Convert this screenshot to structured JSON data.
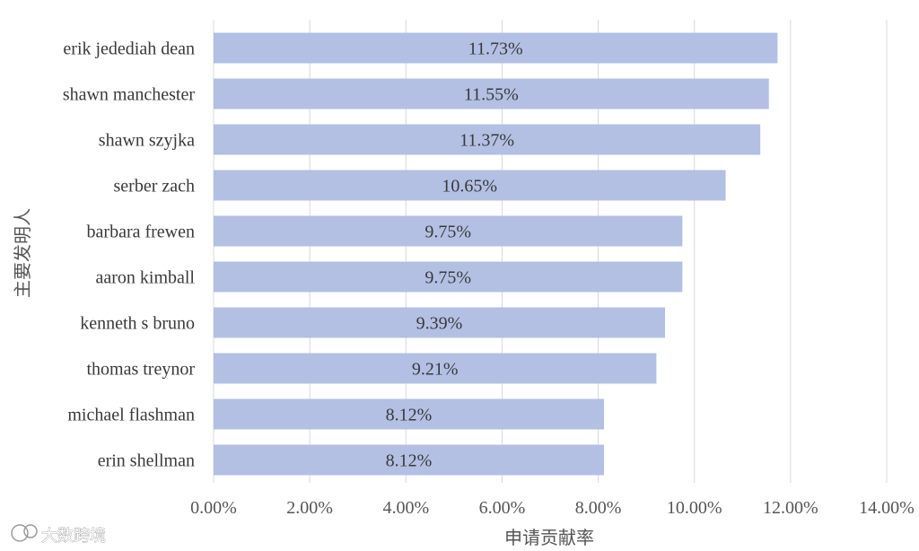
{
  "chart_data": {
    "type": "bar",
    "orientation": "horizontal",
    "categories": [
      "erik jedediah dean",
      "shawn manchester",
      "shawn szyjka",
      "serber zach",
      "barbara frewen",
      "aaron kimball",
      "kenneth s bruno",
      "thomas treynor",
      "michael flashman",
      "erin shellman"
    ],
    "values": [
      11.73,
      11.55,
      11.37,
      10.65,
      9.75,
      9.75,
      9.39,
      9.21,
      8.12,
      8.12
    ],
    "data_labels": [
      "11.73%",
      "11.55%",
      "11.37%",
      "10.65%",
      "9.75%",
      "9.75%",
      "9.39%",
      "9.21%",
      "8.12%",
      "8.12%"
    ],
    "xlabel": "申请贡献率",
    "ylabel": "主要发明人",
    "xlim": [
      0,
      14
    ],
    "xticks": [
      0,
      2,
      4,
      6,
      8,
      10,
      12,
      14
    ],
    "xtick_labels": [
      "0.00%",
      "2.00%",
      "4.00%",
      "6.00%",
      "8.00%",
      "10.00%",
      "12.00%",
      "14.00%"
    ],
    "grid": "vertical",
    "bar_color": "#b3c0e4",
    "legend": "none"
  },
  "watermark": {
    "text": "大数跨境"
  }
}
